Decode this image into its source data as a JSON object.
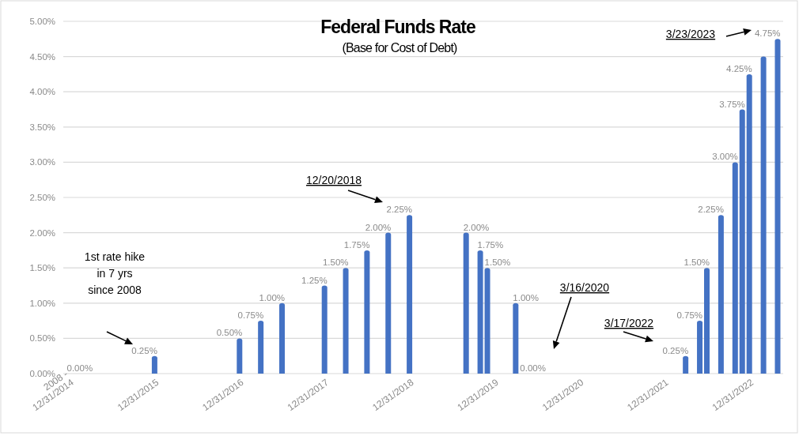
{
  "chart_data": {
    "type": "bar",
    "title": "Federal Funds Rate",
    "subtitle": "(Base for Cost of Debt)",
    "categories": [
      "2008 -\n12/31/2014",
      null,
      null,
      null,
      null,
      null,
      null,
      null,
      null,
      null,
      null,
      null,
      "12/31/2015",
      null,
      null,
      null,
      null,
      null,
      null,
      null,
      null,
      null,
      null,
      null,
      "12/31/2016",
      null,
      null,
      null,
      null,
      null,
      null,
      null,
      null,
      null,
      null,
      null,
      "12/31/2017",
      null,
      null,
      null,
      null,
      null,
      null,
      null,
      null,
      null,
      null,
      null,
      "12/31/2018",
      null,
      null,
      null,
      null,
      null,
      null,
      null,
      null,
      null,
      null,
      null,
      "12/31/2019",
      null,
      null,
      null,
      null,
      null,
      null,
      null,
      null,
      null,
      null,
      null,
      "12/31/2020",
      null,
      null,
      null,
      null,
      null,
      null,
      null,
      null,
      null,
      null,
      null,
      "12/31/2021",
      null,
      null,
      null,
      null,
      null,
      null,
      null,
      null,
      null,
      null,
      null,
      "12/31/2022",
      null,
      null,
      null,
      null
    ],
    "values": [
      0,
      null,
      null,
      null,
      null,
      null,
      null,
      null,
      null,
      null,
      null,
      null,
      0.25,
      null,
      null,
      null,
      null,
      null,
      null,
      null,
      null,
      null,
      null,
      null,
      0.5,
      null,
      null,
      0.75,
      null,
      null,
      1.0,
      null,
      null,
      null,
      null,
      null,
      1.25,
      null,
      null,
      1.5,
      null,
      null,
      1.75,
      null,
      null,
      2.0,
      null,
      null,
      2.25,
      null,
      null,
      null,
      null,
      null,
      null,
      null,
      2.0,
      null,
      1.75,
      1.5,
      null,
      null,
      null,
      1.0,
      0,
      null,
      null,
      null,
      null,
      null,
      null,
      null,
      null,
      null,
      null,
      null,
      null,
      null,
      null,
      null,
      null,
      null,
      null,
      null,
      null,
      null,
      null,
      0.25,
      null,
      0.75,
      1.5,
      null,
      2.25,
      null,
      3.0,
      3.75,
      4.25,
      null,
      4.5,
      null,
      4.75
    ],
    "value_labels": [
      "0.00%",
      null,
      null,
      null,
      null,
      null,
      null,
      null,
      null,
      null,
      null,
      null,
      "0.25%",
      null,
      null,
      null,
      null,
      null,
      null,
      null,
      null,
      null,
      null,
      null,
      "0.50%",
      null,
      null,
      "0.75%",
      null,
      null,
      "1.00%",
      null,
      null,
      null,
      null,
      null,
      "1.25%",
      null,
      null,
      "1.50%",
      null,
      null,
      "1.75%",
      null,
      null,
      "2.00%",
      null,
      null,
      "2.25%",
      null,
      null,
      null,
      null,
      null,
      null,
      null,
      "2.00%",
      null,
      "1.75%",
      "1.50%",
      null,
      null,
      null,
      "1.00%",
      "0.00%",
      null,
      null,
      null,
      null,
      null,
      null,
      null,
      null,
      null,
      null,
      null,
      null,
      null,
      null,
      null,
      null,
      null,
      null,
      null,
      null,
      null,
      null,
      "0.25%",
      null,
      "0.75%",
      "1.50%",
      null,
      "2.25%",
      null,
      "3.00%",
      "3.75%",
      "4.25%",
      null,
      null,
      null,
      "4.75%"
    ],
    "color": "#4472c4",
    "ylim": [
      0,
      5
    ],
    "yticks": [
      {
        "value": 0,
        "label": "0.00%"
      },
      {
        "value": 0.5,
        "label": "0.50%"
      },
      {
        "value": 1,
        "label": "1.00%"
      },
      {
        "value": 1.5,
        "label": "1.50%"
      },
      {
        "value": 2,
        "label": "2.00%"
      },
      {
        "value": 2.5,
        "label": "2.50%"
      },
      {
        "value": 3,
        "label": "3.00%"
      },
      {
        "value": 3.5,
        "label": "3.50%"
      },
      {
        "value": 4,
        "label": "4.00%"
      },
      {
        "value": 4.5,
        "label": "4.50%"
      },
      {
        "value": 5,
        "label": "5.00%"
      }
    ],
    "grid": "y",
    "annotations": [
      "1st rate hike\nin 7 yrs\nsince 2008",
      "12/20/2018",
      "3/16/2020",
      "3/17/2022",
      "3/23/2023"
    ]
  }
}
